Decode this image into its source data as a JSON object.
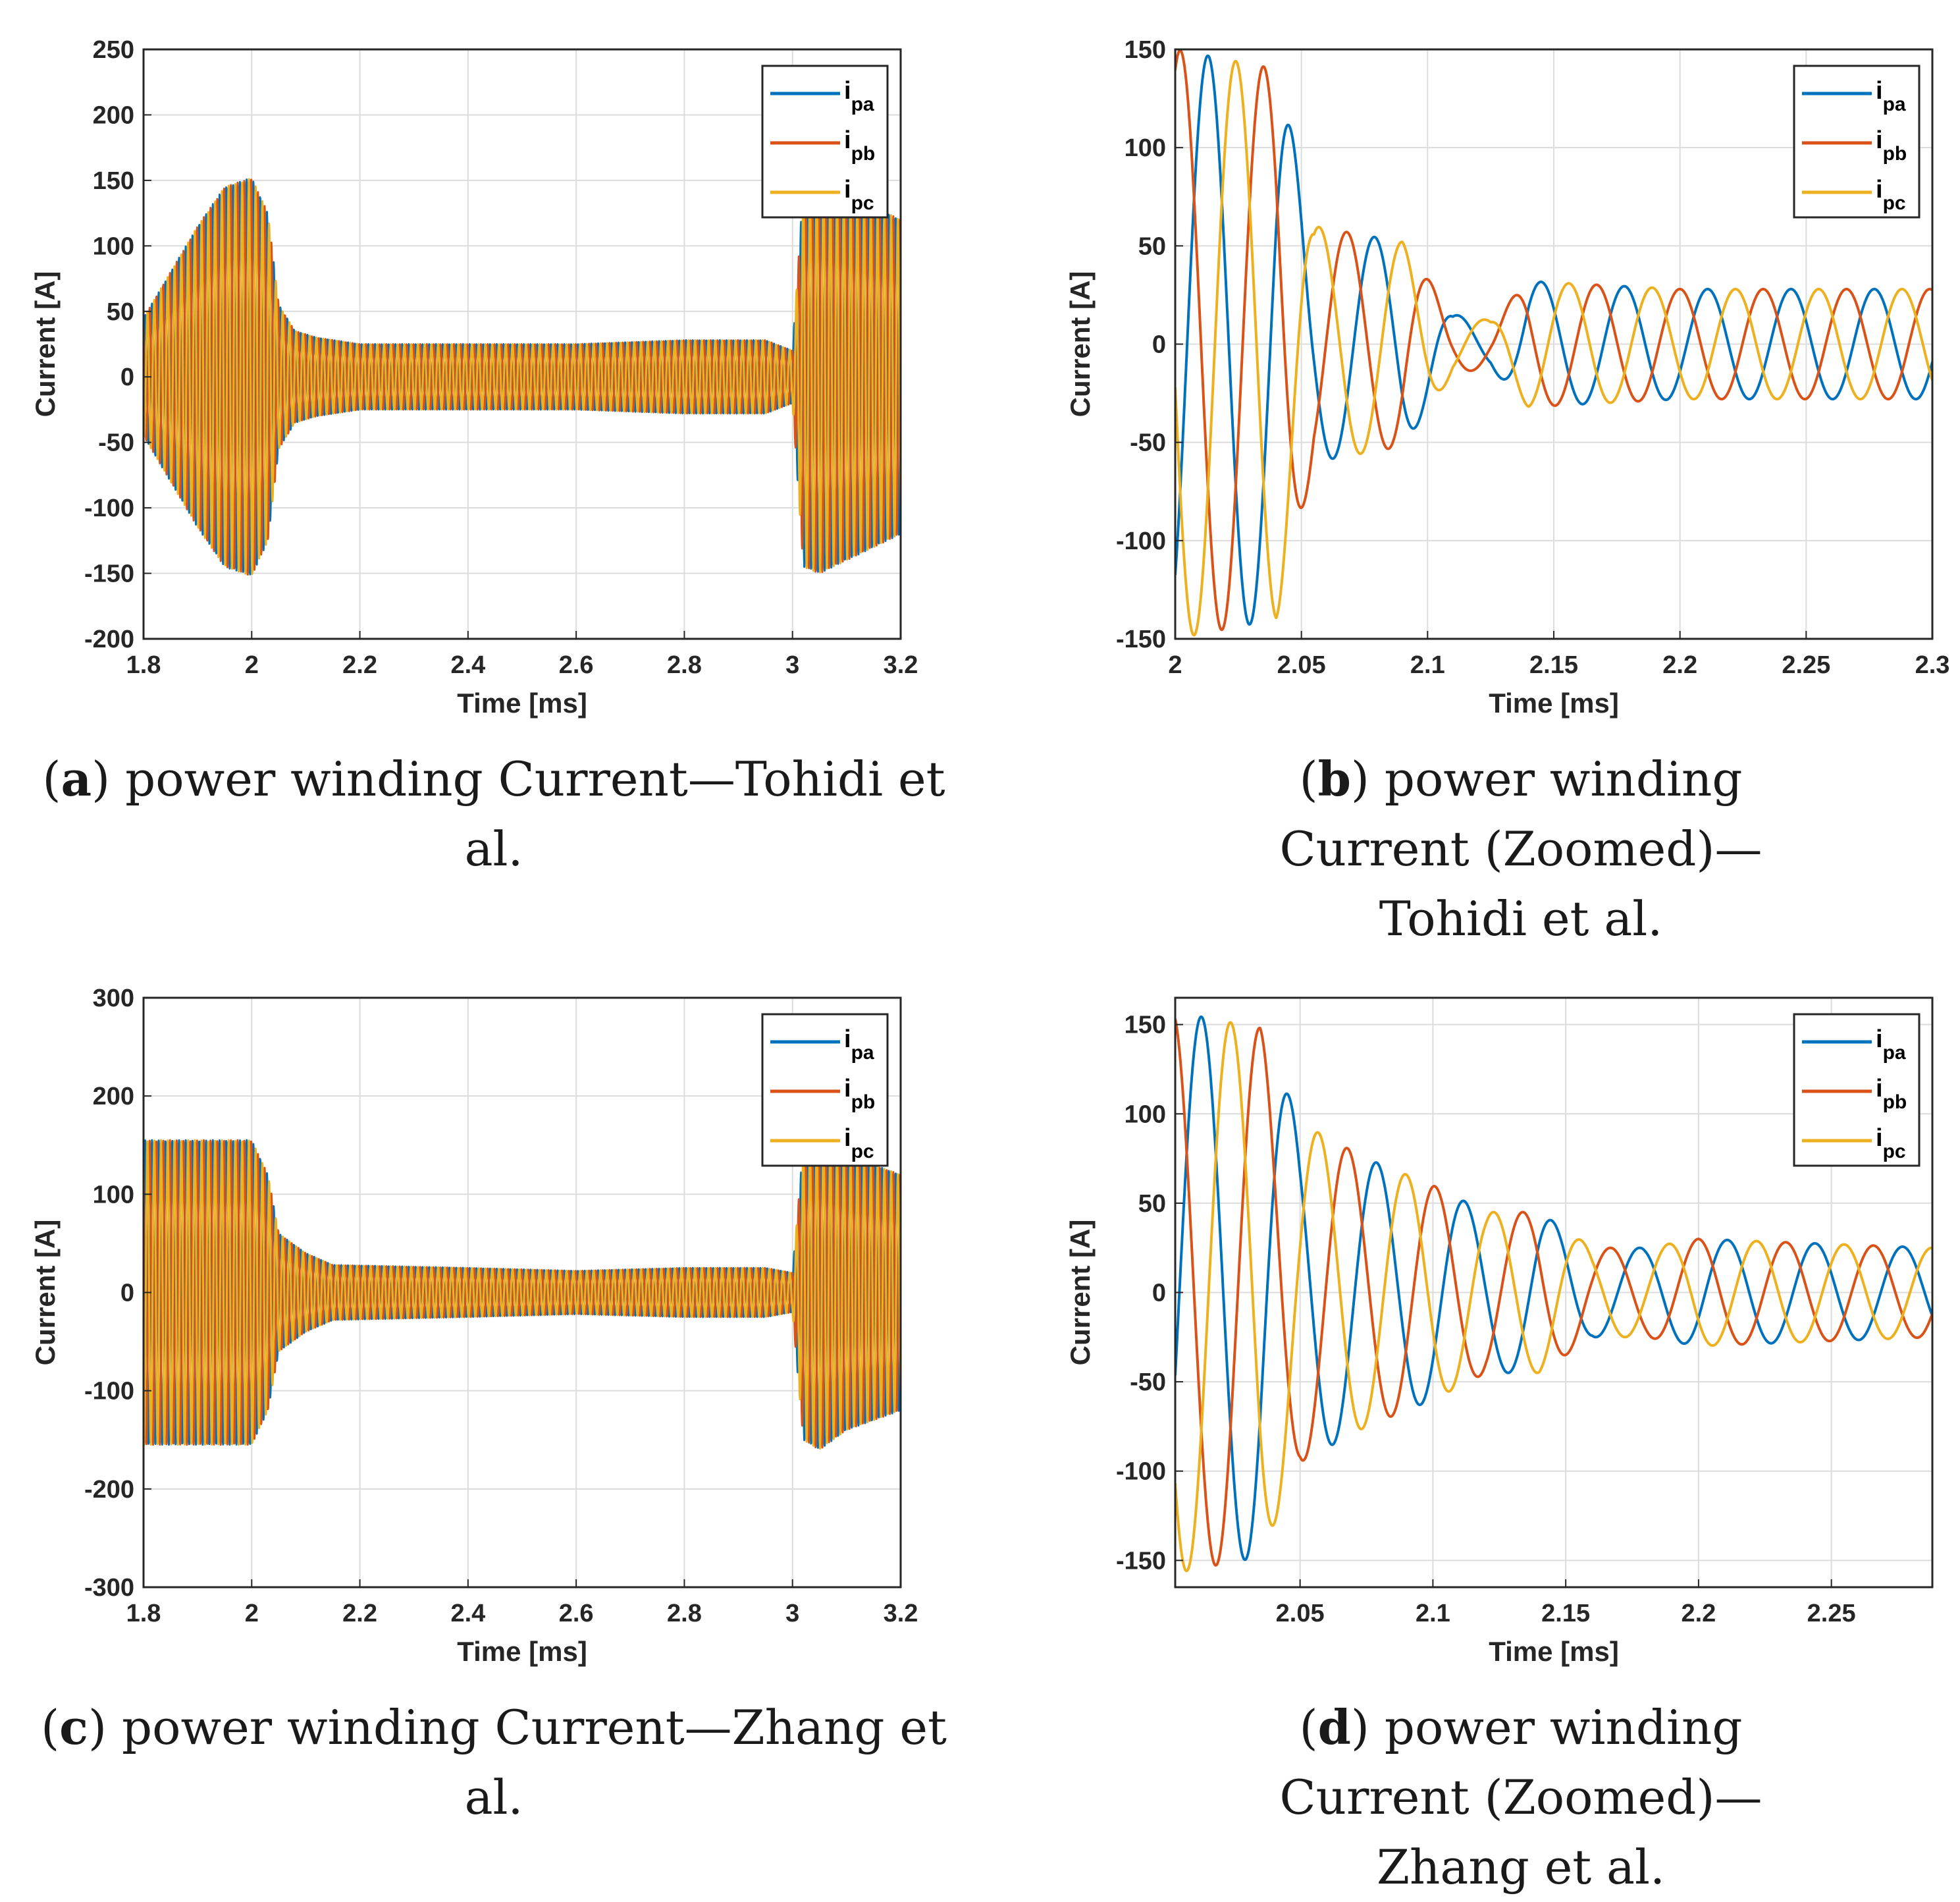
{
  "colors": {
    "ipa": "#0072BD",
    "ipb": "#D95319",
    "ipc": "#EDB120",
    "grid": "#dcdcdc",
    "axis": "#262626"
  },
  "chart_data": [
    {
      "id": "a",
      "type": "line",
      "xlabel": "Time [ms]",
      "ylabel": "Current [A]",
      "xlim": [
        1.8,
        3.2
      ],
      "ylim": [
        -200,
        250
      ],
      "xticks": [
        1.8,
        2,
        2.2,
        2.4,
        2.6,
        2.8,
        3,
        3.2
      ],
      "xtick_labels": [
        "1.8",
        "2",
        "2.2",
        "2.4",
        "2.6",
        "2.8",
        "3",
        "3.2"
      ],
      "yticks": [
        -200,
        -150,
        -100,
        -50,
        0,
        50,
        100,
        150,
        200,
        250
      ],
      "ytick_labels": [
        "-200",
        "-150",
        "-100",
        "-50",
        "0",
        "50",
        "100",
        "150",
        "200",
        "250"
      ],
      "legend": [
        {
          "base": "i",
          "sub": "pa"
        },
        {
          "base": "i",
          "sub": "pb"
        },
        {
          "base": "i",
          "sub": "pc"
        }
      ],
      "legend_position": "top-right",
      "grid": true,
      "series": [
        {
          "name": "ipa",
          "period": 0.0125,
          "phase": 0,
          "envelope": [
            [
              1.8,
              45
            ],
            [
              1.85,
              80
            ],
            [
              1.9,
              115
            ],
            [
              1.95,
              145
            ],
            [
              2.0,
              152
            ],
            [
              2.03,
              125
            ],
            [
              2.05,
              55
            ],
            [
              2.08,
              35
            ],
            [
              2.12,
              30
            ],
            [
              2.2,
              25
            ],
            [
              2.4,
              25
            ],
            [
              2.6,
              25
            ],
            [
              2.8,
              28
            ],
            [
              2.95,
              28
            ],
            [
              3.0,
              20
            ],
            [
              3.02,
              145
            ],
            [
              3.05,
              150
            ],
            [
              3.1,
              140
            ],
            [
              3.2,
              120
            ]
          ]
        },
        {
          "name": "ipb",
          "period": 0.0125,
          "phase": 2.094,
          "envelope": [
            [
              1.8,
              45
            ],
            [
              1.85,
              80
            ],
            [
              1.9,
              115
            ],
            [
              1.95,
              145
            ],
            [
              2.0,
              152
            ],
            [
              2.03,
              125
            ],
            [
              2.05,
              55
            ],
            [
              2.08,
              35
            ],
            [
              2.12,
              30
            ],
            [
              2.2,
              25
            ],
            [
              2.4,
              25
            ],
            [
              2.6,
              25
            ],
            [
              2.8,
              28
            ],
            [
              2.95,
              28
            ],
            [
              3.0,
              20
            ],
            [
              3.02,
              145
            ],
            [
              3.05,
              150
            ],
            [
              3.1,
              140
            ],
            [
              3.2,
              120
            ]
          ]
        },
        {
          "name": "ipc",
          "period": 0.0125,
          "phase": 4.189,
          "envelope": [
            [
              1.8,
              45
            ],
            [
              1.85,
              80
            ],
            [
              1.9,
              115
            ],
            [
              1.95,
              145
            ],
            [
              2.0,
              152
            ],
            [
              2.03,
              125
            ],
            [
              2.05,
              55
            ],
            [
              2.08,
              35
            ],
            [
              2.12,
              30
            ],
            [
              2.2,
              25
            ],
            [
              2.4,
              25
            ],
            [
              2.6,
              25
            ],
            [
              2.8,
              28
            ],
            [
              2.95,
              28
            ],
            [
              3.0,
              20
            ],
            [
              3.02,
              145
            ],
            [
              3.05,
              150
            ],
            [
              3.1,
              140
            ],
            [
              3.2,
              120
            ]
          ]
        }
      ]
    },
    {
      "id": "b",
      "type": "line",
      "xlabel": "Time [ms]",
      "ylabel": "Current [A]",
      "xlim": [
        2.0,
        2.3
      ],
      "ylim": [
        -150,
        150
      ],
      "xticks": [
        2,
        2.05,
        2.1,
        2.15,
        2.2,
        2.25,
        2.3
      ],
      "xtick_labels": [
        "2",
        "2.05",
        "2.1",
        "2.15",
        "2.2",
        "2.25",
        "2.3"
      ],
      "yticks": [
        -150,
        -100,
        -50,
        0,
        50,
        100,
        150
      ],
      "ytick_labels": [
        "-150",
        "-100",
        "-50",
        "0",
        "50",
        "100",
        "150"
      ],
      "legend": [
        {
          "base": "i",
          "sub": "pa"
        },
        {
          "base": "i",
          "sub": "pb"
        },
        {
          "base": "i",
          "sub": "pc"
        }
      ],
      "legend_position": "top-right",
      "grid": true,
      "series": [
        {
          "name": "ipa",
          "period": 0.033,
          "phase": -0.9,
          "envelope": [
            [
              2.0,
              150
            ],
            [
              2.04,
              140
            ],
            [
              2.055,
              60
            ],
            [
              2.09,
              52
            ],
            [
              2.11,
              15
            ],
            [
              2.125,
              12
            ],
            [
              2.14,
              32
            ],
            [
              2.2,
              28
            ],
            [
              2.3,
              28
            ]
          ]
        },
        {
          "name": "ipb",
          "period": 0.033,
          "phase": 1.194,
          "envelope": [
            [
              2.0,
              150
            ],
            [
              2.04,
              140
            ],
            [
              2.055,
              60
            ],
            [
              2.09,
              52
            ],
            [
              2.11,
              15
            ],
            [
              2.125,
              12
            ],
            [
              2.14,
              32
            ],
            [
              2.2,
              28
            ],
            [
              2.3,
              28
            ]
          ]
        },
        {
          "name": "ipc",
          "period": 0.033,
          "phase": 3.289,
          "envelope": [
            [
              2.0,
              150
            ],
            [
              2.04,
              140
            ],
            [
              2.055,
              60
            ],
            [
              2.09,
              52
            ],
            [
              2.11,
              15
            ],
            [
              2.125,
              12
            ],
            [
              2.14,
              32
            ],
            [
              2.2,
              28
            ],
            [
              2.3,
              28
            ]
          ]
        }
      ]
    },
    {
      "id": "c",
      "type": "line",
      "xlabel": "Time [ms]",
      "ylabel": "Current [A]",
      "xlim": [
        1.8,
        3.2
      ],
      "ylim": [
        -300,
        300
      ],
      "xticks": [
        1.8,
        2,
        2.2,
        2.4,
        2.6,
        2.8,
        3,
        3.2
      ],
      "xtick_labels": [
        "1.8",
        "2",
        "2.2",
        "2.4",
        "2.6",
        "2.8",
        "3",
        "3.2"
      ],
      "yticks": [
        -300,
        -200,
        -100,
        0,
        100,
        200,
        300
      ],
      "ytick_labels": [
        "-300",
        "-200",
        "-100",
        "0",
        "100",
        "200",
        "300"
      ],
      "legend": [
        {
          "base": "i",
          "sub": "pa"
        },
        {
          "base": "i",
          "sub": "pb"
        },
        {
          "base": "i",
          "sub": "pc"
        }
      ],
      "legend_position": "top-right",
      "grid": true,
      "series": [
        {
          "name": "ipa",
          "period": 0.0125,
          "phase": 0,
          "envelope": [
            [
              1.8,
              155
            ],
            [
              1.95,
              155
            ],
            [
              2.0,
              155
            ],
            [
              2.03,
              120
            ],
            [
              2.05,
              60
            ],
            [
              2.1,
              40
            ],
            [
              2.15,
              28
            ],
            [
              2.4,
              25
            ],
            [
              2.6,
              22
            ],
            [
              2.8,
              25
            ],
            [
              2.95,
              25
            ],
            [
              3.0,
              20
            ],
            [
              3.02,
              150
            ],
            [
              3.05,
              160
            ],
            [
              3.1,
              140
            ],
            [
              3.2,
              120
            ]
          ]
        },
        {
          "name": "ipb",
          "period": 0.0125,
          "phase": 2.094,
          "envelope": [
            [
              1.8,
              155
            ],
            [
              1.95,
              155
            ],
            [
              2.0,
              155
            ],
            [
              2.03,
              120
            ],
            [
              2.05,
              60
            ],
            [
              2.1,
              40
            ],
            [
              2.15,
              28
            ],
            [
              2.4,
              25
            ],
            [
              2.6,
              22
            ],
            [
              2.8,
              25
            ],
            [
              2.95,
              25
            ],
            [
              3.0,
              20
            ],
            [
              3.02,
              150
            ],
            [
              3.05,
              160
            ],
            [
              3.1,
              140
            ],
            [
              3.2,
              120
            ]
          ]
        },
        {
          "name": "ipc",
          "period": 0.0125,
          "phase": 4.189,
          "envelope": [
            [
              1.8,
              155
            ],
            [
              1.95,
              155
            ],
            [
              2.0,
              155
            ],
            [
              2.03,
              120
            ],
            [
              2.05,
              60
            ],
            [
              2.1,
              40
            ],
            [
              2.15,
              28
            ],
            [
              2.4,
              25
            ],
            [
              2.6,
              22
            ],
            [
              2.8,
              25
            ],
            [
              2.95,
              25
            ],
            [
              3.0,
              20
            ],
            [
              3.02,
              150
            ],
            [
              3.05,
              160
            ],
            [
              3.1,
              140
            ],
            [
              3.2,
              120
            ]
          ]
        }
      ]
    },
    {
      "id": "d",
      "type": "line",
      "xlabel": "Time [ms]",
      "ylabel": "Current [A]",
      "xlim": [
        2.003,
        2.288
      ],
      "ylim": [
        -165,
        165
      ],
      "xticks": [
        2.05,
        2.1,
        2.15,
        2.2,
        2.25
      ],
      "xtick_labels": [
        "2.05",
        "2.1",
        "2.15",
        "2.2",
        "2.25"
      ],
      "yticks": [
        -150,
        -100,
        -50,
        0,
        50,
        100,
        150
      ],
      "ytick_labels": [
        "-150",
        "-100",
        "-50",
        "0",
        "50",
        "100",
        "150"
      ],
      "legend": [
        {
          "base": "i",
          "sub": "pa"
        },
        {
          "base": "i",
          "sub": "pb"
        },
        {
          "base": "i",
          "sub": "pc"
        }
      ],
      "legend_position": "top-right",
      "grid": true,
      "series": [
        {
          "name": "ipa",
          "period": 0.033,
          "phase": -0.3,
          "envelope": [
            [
              2.0,
              158
            ],
            [
              2.035,
              148
            ],
            [
              2.05,
              95
            ],
            [
              2.075,
              75
            ],
            [
              2.1,
              60
            ],
            [
              2.12,
              45
            ],
            [
              2.14,
              45
            ],
            [
              2.16,
              25
            ],
            [
              2.18,
              25
            ],
            [
              2.2,
              30
            ],
            [
              2.288,
              25
            ]
          ]
        },
        {
          "name": "ipb",
          "period": 0.033,
          "phase": 1.794,
          "envelope": [
            [
              2.0,
              158
            ],
            [
              2.035,
              148
            ],
            [
              2.05,
              95
            ],
            [
              2.075,
              75
            ],
            [
              2.1,
              60
            ],
            [
              2.12,
              45
            ],
            [
              2.14,
              45
            ],
            [
              2.16,
              25
            ],
            [
              2.18,
              25
            ],
            [
              2.2,
              30
            ],
            [
              2.288,
              25
            ]
          ]
        },
        {
          "name": "ipc",
          "period": 0.033,
          "phase": 3.889,
          "envelope": [
            [
              2.0,
              158
            ],
            [
              2.035,
              148
            ],
            [
              2.05,
              95
            ],
            [
              2.075,
              75
            ],
            [
              2.1,
              60
            ],
            [
              2.12,
              45
            ],
            [
              2.14,
              45
            ],
            [
              2.16,
              25
            ],
            [
              2.18,
              25
            ],
            [
              2.2,
              30
            ],
            [
              2.288,
              25
            ]
          ]
        }
      ]
    }
  ],
  "captions": [
    {
      "letter": "a",
      "text": "power winding Current—Tohidi et al."
    },
    {
      "letter": "b",
      "text": "power winding Current (Zoomed)—Tohidi et al."
    },
    {
      "letter": "c",
      "text": "power winding Current—Zhang et al."
    },
    {
      "letter": "d",
      "text": "power winding Current (Zoomed)—Zhang et al."
    }
  ]
}
